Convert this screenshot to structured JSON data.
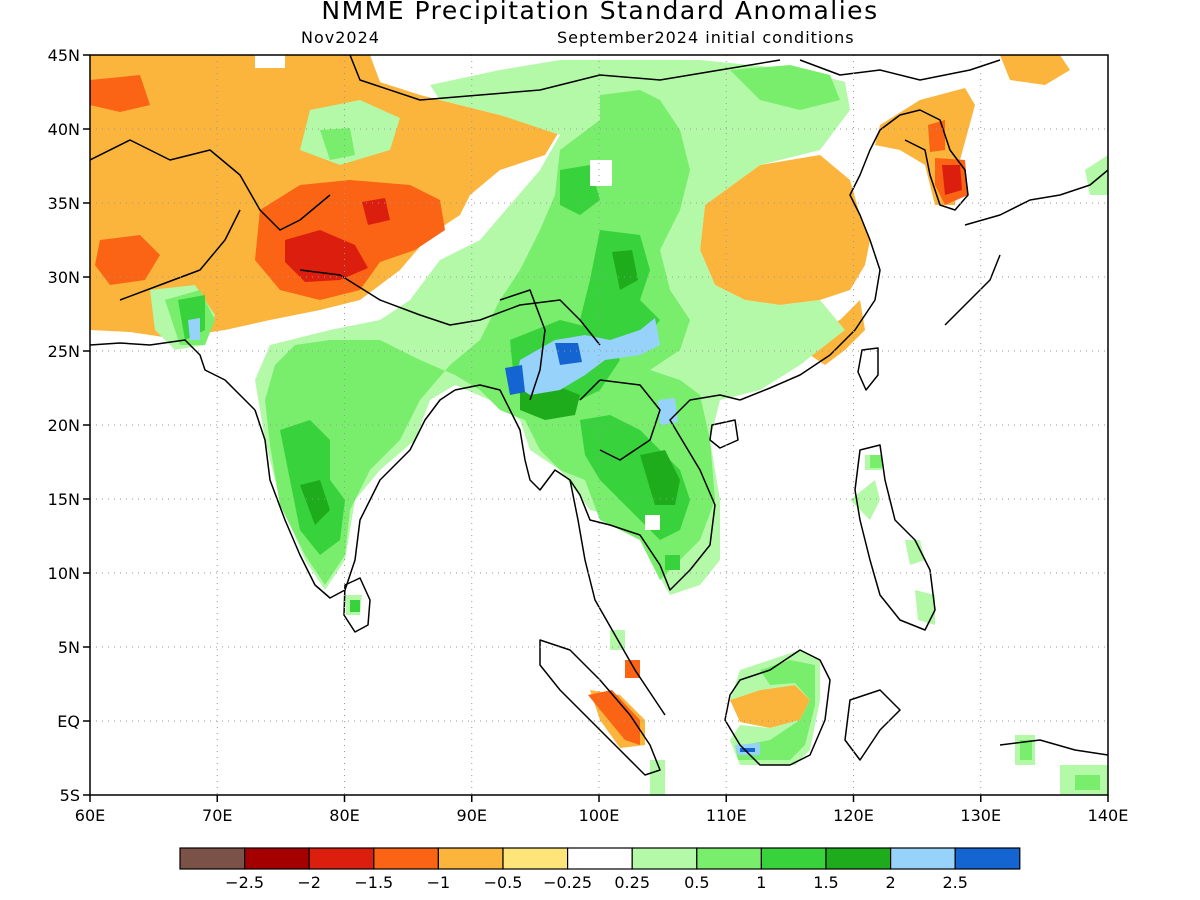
{
  "header": {
    "title": "NMME Precipitation Standard Anomalies",
    "valid_month": "Nov2024",
    "init_conditions": "September2024 initial conditions"
  },
  "map": {
    "lon_range": [
      60,
      140
    ],
    "lat_range": [
      -5,
      45
    ],
    "x_ticks": [
      {
        "value": 60,
        "label": "60E"
      },
      {
        "value": 70,
        "label": "70E"
      },
      {
        "value": 80,
        "label": "80E"
      },
      {
        "value": 90,
        "label": "90E"
      },
      {
        "value": 100,
        "label": "100E"
      },
      {
        "value": 110,
        "label": "110E"
      },
      {
        "value": 120,
        "label": "120E"
      },
      {
        "value": 130,
        "label": "130E"
      },
      {
        "value": 140,
        "label": "140E"
      }
    ],
    "y_ticks": [
      {
        "value": 45,
        "label": "45N"
      },
      {
        "value": 40,
        "label": "40N"
      },
      {
        "value": 35,
        "label": "35N"
      },
      {
        "value": 30,
        "label": "30N"
      },
      {
        "value": 25,
        "label": "25N"
      },
      {
        "value": 20,
        "label": "20N"
      },
      {
        "value": 15,
        "label": "15N"
      },
      {
        "value": 10,
        "label": "10N"
      },
      {
        "value": 5,
        "label": "5N"
      },
      {
        "value": 0,
        "label": "EQ"
      },
      {
        "value": -5,
        "label": "5S"
      }
    ],
    "grid": "dotted"
  },
  "legend": {
    "colors": [
      "#7b5247",
      "#a50000",
      "#dc1e0f",
      "#fa6414",
      "#fbb43c",
      "#ffe479",
      "#ffffff",
      "#b3f9a8",
      "#79ed6c",
      "#37d23c",
      "#1fac1c",
      "#96d2fa",
      "#1464d2"
    ],
    "labels": [
      "−2.5",
      "−2",
      "−1.5",
      "−1",
      "−0.5",
      "−0.25",
      "0.25",
      "0.5",
      "1",
      "1.5",
      "2",
      "2.5"
    ]
  }
}
